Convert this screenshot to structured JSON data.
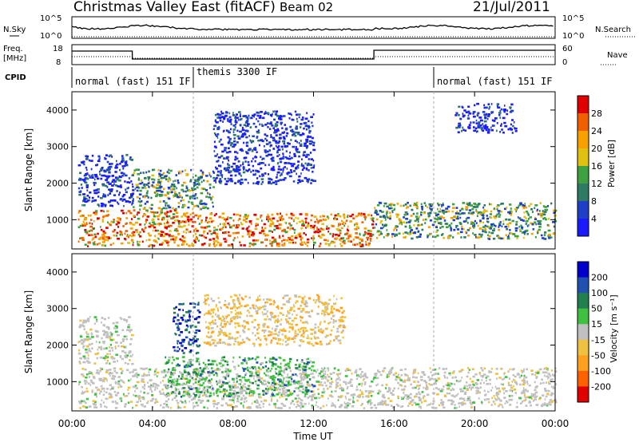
{
  "header": {
    "title": "Christmas Valley East (fitACF)",
    "beam": "Beam 02",
    "date": "21/Jul/2011"
  },
  "top_panels": {
    "nsky_label": "N.Sky",
    "nsky_ticks": [
      "10^5",
      "10^0"
    ],
    "nsearch_label": "N.Search",
    "nsearch_ticks": [
      "10^5",
      "10^0"
    ],
    "freq_label_line1": "Freq.",
    "freq_label_line2": "[MHz]",
    "freq_ticks": [
      "18",
      "8"
    ],
    "nave_label": "Nave",
    "nave_ticks": [
      "60",
      "0"
    ],
    "cpid_label": "CPID",
    "cpid_segments": [
      "normal (fast) 151 IF",
      "themis 3300 IF",
      "normal (fast) 151 IF"
    ]
  },
  "colors": {
    "power": [
      "#1a1aff",
      "#1f3fc8",
      "#2e7a64",
      "#3fa042",
      "#e0c010",
      "#f7a000",
      "#f06000",
      "#e00000"
    ],
    "velocity": [
      "#e00000",
      "#ff6000",
      "#ffa020",
      "#f0c040",
      "#c0c0c0",
      "#40c040",
      "#208050",
      "#2050b0",
      "#0000cc"
    ]
  },
  "chart_data": [
    {
      "type": "heatmap",
      "name": "power",
      "ylabel": "Slant Range [km]",
      "xlabel": "",
      "x_ticks": [
        "00:00",
        "04:00",
        "08:00",
        "12:00",
        "16:00",
        "20:00",
        "00:00"
      ],
      "y_ticks": [
        1000,
        2000,
        3000,
        4000
      ],
      "ylim": [
        200,
        4500
      ],
      "xlim_hours": [
        0,
        24
      ],
      "colorbar_label": "Power [dB]",
      "colorbar_ticks": [
        4,
        8,
        12,
        16,
        20,
        24,
        28
      ],
      "regions": [
        {
          "t0": 0.3,
          "t1": 6.2,
          "r0": 300,
          "r1": 1300,
          "level": "high"
        },
        {
          "t0": 6.2,
          "t1": 15.0,
          "r0": 300,
          "r1": 1200,
          "level": "high"
        },
        {
          "t0": 15.0,
          "t1": 24.0,
          "r0": 500,
          "r1": 1500,
          "level": "mid"
        },
        {
          "t0": 3.0,
          "t1": 7.0,
          "r0": 1300,
          "r1": 2400,
          "level": "mid"
        },
        {
          "t0": 0.3,
          "t1": 3.0,
          "r0": 1400,
          "r1": 2800,
          "level": "low"
        },
        {
          "t0": 7.0,
          "t1": 12.0,
          "r0": 2000,
          "r1": 4000,
          "level": "low"
        },
        {
          "t0": 19.0,
          "t1": 22.0,
          "r0": 3400,
          "r1": 4200,
          "level": "low"
        }
      ]
    },
    {
      "type": "heatmap",
      "name": "velocity",
      "ylabel": "Slant Range [km]",
      "xlabel": "Time UT",
      "x_ticks": [
        "00:00",
        "04:00",
        "08:00",
        "12:00",
        "16:00",
        "20:00",
        "00:00"
      ],
      "y_ticks": [
        1000,
        2000,
        3000,
        4000
      ],
      "ylim": [
        200,
        4500
      ],
      "xlim_hours": [
        0,
        24
      ],
      "colorbar_label": "Velocity [m s⁻¹]",
      "colorbar_ticks": [
        -200,
        -100,
        -50,
        -15,
        15,
        50,
        100,
        200
      ],
      "regions": [
        {
          "t0": 0.3,
          "t1": 24.0,
          "r0": 300,
          "r1": 1400,
          "level": "ground"
        },
        {
          "t0": 4.5,
          "t1": 12.0,
          "r0": 600,
          "r1": 1700,
          "level": "positive"
        },
        {
          "t0": 5.0,
          "t1": 6.3,
          "r0": 1800,
          "r1": 3200,
          "level": "strong-positive"
        },
        {
          "t0": 6.5,
          "t1": 13.5,
          "r0": 2000,
          "r1": 3400,
          "level": "negative"
        },
        {
          "t0": 0.3,
          "t1": 3.0,
          "r0": 1500,
          "r1": 2800,
          "level": "ground"
        }
      ]
    }
  ]
}
